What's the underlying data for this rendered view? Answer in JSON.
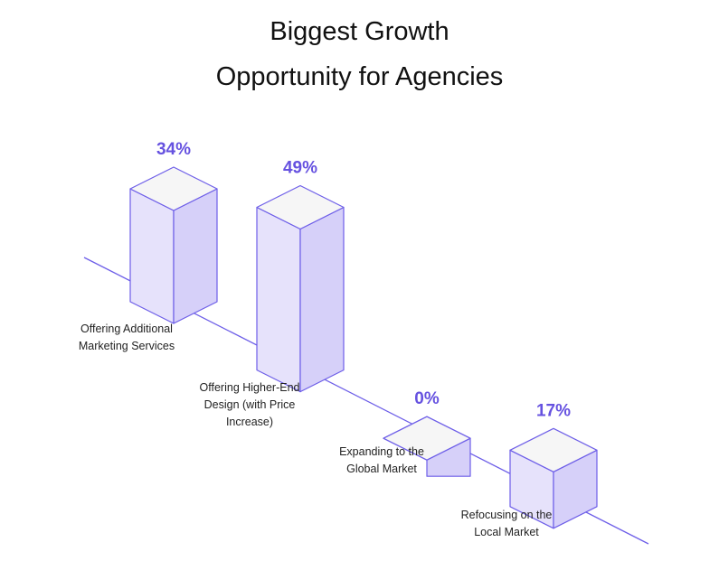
{
  "chart_data": {
    "type": "bar",
    "style": "isometric-3d",
    "title_lines": [
      "Biggest Growth",
      "Opportunity for Agencies"
    ],
    "categories": [
      [
        "Offering Additional",
        "Marketing Services"
      ],
      [
        "Offering Higher-End",
        "Design (with Price",
        "Increase)"
      ],
      [
        "Expanding to the",
        "Global Market"
      ],
      [
        "Refocusing on the",
        "Local Market"
      ]
    ],
    "values": [
      34,
      49,
      0,
      17
    ],
    "value_labels": [
      "34%",
      "49%",
      "0%",
      "17%"
    ],
    "unit": "%",
    "grid": false,
    "legend": "none",
    "colors": {
      "accent": "#6652e0",
      "edge": "#6d5ee8",
      "face_left": "#e6e2fb",
      "face_right": "#d6d0f9",
      "face_top": "#f6f6f6",
      "baseline": "#6d5ee8"
    }
  }
}
